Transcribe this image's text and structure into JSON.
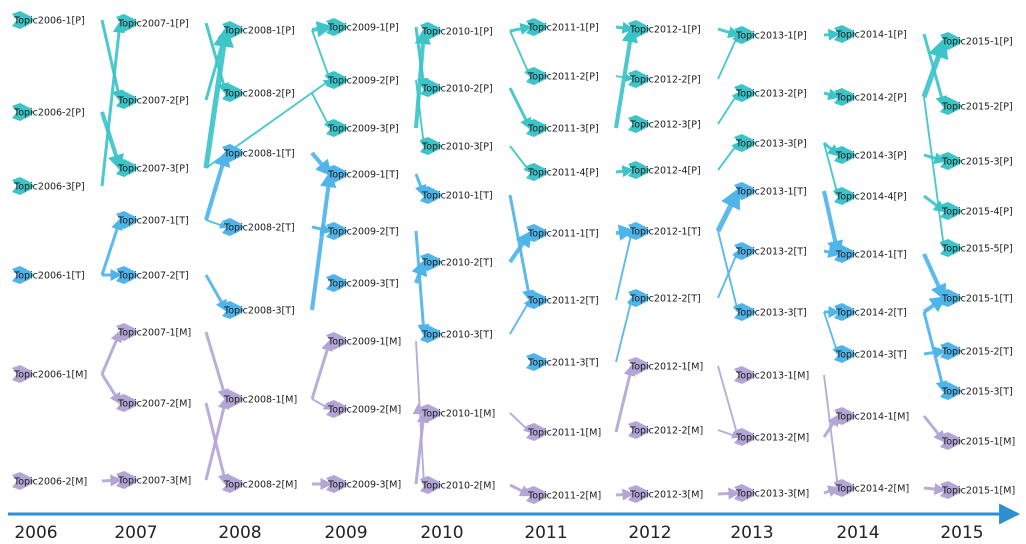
{
  "colors": {
    "P": "#3cc4c8",
    "T": "#4fb4ea",
    "M": "#b3a6d6",
    "axis": "#2b8fd0"
  },
  "years": [
    "2006",
    "2007",
    "2008",
    "2009",
    "2010",
    "2011",
    "2012",
    "2013",
    "2014",
    "2015"
  ],
  "nodes": [
    {
      "id": "P06_1",
      "label": "Topic2006-1[P]",
      "group": "P"
    },
    {
      "id": "P06_2",
      "label": "Topic2006-2[P]",
      "group": "P"
    },
    {
      "id": "P06_3",
      "label": "Topic2006-3[P]",
      "group": "P"
    },
    {
      "id": "P07_1",
      "label": "Topic2007-1[P]",
      "group": "P"
    },
    {
      "id": "P07_2",
      "label": "Topic2007-2[P]",
      "group": "P"
    },
    {
      "id": "P07_3",
      "label": "Topic2007-3[P]",
      "group": "P"
    },
    {
      "id": "P08_1",
      "label": "Topic2008-1[P]",
      "group": "P"
    },
    {
      "id": "P08_2",
      "label": "Topic2008-2[P]",
      "group": "P"
    },
    {
      "id": "P09_1",
      "label": "Topic2009-1[P]",
      "group": "P"
    },
    {
      "id": "P09_2",
      "label": "Topic2009-2[P]",
      "group": "P"
    },
    {
      "id": "P09_3",
      "label": "Topic2009-3[P]",
      "group": "P"
    },
    {
      "id": "P10_1",
      "label": "Topic2010-1[P]",
      "group": "P"
    },
    {
      "id": "P10_2",
      "label": "Topic2010-2[P]",
      "group": "P"
    },
    {
      "id": "P10_3",
      "label": "Topic2010-3[P]",
      "group": "P"
    },
    {
      "id": "P11_1",
      "label": "Topic2011-1[P]",
      "group": "P"
    },
    {
      "id": "P11_2",
      "label": "Topic2011-2[P]",
      "group": "P"
    },
    {
      "id": "P11_3",
      "label": "Topic2011-3[P]",
      "group": "P"
    },
    {
      "id": "P11_4",
      "label": "Topic2011-4[P]",
      "group": "P"
    },
    {
      "id": "P12_1",
      "label": "Topic2012-1[P]",
      "group": "P"
    },
    {
      "id": "P12_2",
      "label": "Topic2012-2[P]",
      "group": "P"
    },
    {
      "id": "P12_3",
      "label": "Topic2012-3[P]",
      "group": "P"
    },
    {
      "id": "P12_4",
      "label": "Topic2012-4[P]",
      "group": "P"
    },
    {
      "id": "P13_1",
      "label": "Topic2013-1[P]",
      "group": "P"
    },
    {
      "id": "P13_2",
      "label": "Topic2013-2[P]",
      "group": "P"
    },
    {
      "id": "P13_3",
      "label": "Topic2013-3[P]",
      "group": "P"
    },
    {
      "id": "P14_1",
      "label": "Topic2014-1[P]",
      "group": "P"
    },
    {
      "id": "P14_2",
      "label": "Topic2014-2[P]",
      "group": "P"
    },
    {
      "id": "P14_3",
      "label": "Topic2014-3[P]",
      "group": "P"
    },
    {
      "id": "P14_4",
      "label": "Topic2014-4[P]",
      "group": "P"
    },
    {
      "id": "P15_1",
      "label": "Topic2015-1[P]",
      "group": "P"
    },
    {
      "id": "P15_2",
      "label": "Topic2015-2[P]",
      "group": "P"
    },
    {
      "id": "P15_3",
      "label": "Topic2015-3[P]",
      "group": "P"
    },
    {
      "id": "P15_4",
      "label": "Topic2015-4[P]",
      "group": "P"
    },
    {
      "id": "P15_5",
      "label": "Topic2015-5[P]",
      "group": "P"
    },
    {
      "id": "T06_1",
      "label": "Topic2006-1[T]",
      "group": "T"
    },
    {
      "id": "T07_1",
      "label": "Topic2007-1[T]",
      "group": "T"
    },
    {
      "id": "T07_2",
      "label": "Topic2007-2[T]",
      "group": "T"
    },
    {
      "id": "T08_1",
      "label": "Topic2008-1[T]",
      "group": "T"
    },
    {
      "id": "T08_2",
      "label": "Topic2008-2[T]",
      "group": "T"
    },
    {
      "id": "T08_3",
      "label": "Topic2008-3[T]",
      "group": "T"
    },
    {
      "id": "T09_1",
      "label": "Topic2009-1[T]",
      "group": "T"
    },
    {
      "id": "T09_2",
      "label": "Topic2009-2[T]",
      "group": "T"
    },
    {
      "id": "T09_3",
      "label": "Topic2009-3[T]",
      "group": "T"
    },
    {
      "id": "T10_1",
      "label": "Topic2010-1[T]",
      "group": "T"
    },
    {
      "id": "T10_2",
      "label": "Topic2010-2[T]",
      "group": "T"
    },
    {
      "id": "T10_3",
      "label": "Topic2010-3[T]",
      "group": "T"
    },
    {
      "id": "T11_1",
      "label": "Topic2011-1[T]",
      "group": "T"
    },
    {
      "id": "T11_2",
      "label": "Topic2011-2[T]",
      "group": "T"
    },
    {
      "id": "T11_3",
      "label": "Topic2011-3[T]",
      "group": "T"
    },
    {
      "id": "T12_1",
      "label": "Topic2012-1[T]",
      "group": "T"
    },
    {
      "id": "T12_2",
      "label": "Topic2012-2[T]",
      "group": "T"
    },
    {
      "id": "T13_1",
      "label": "Topic2013-1[T]",
      "group": "T"
    },
    {
      "id": "T13_2",
      "label": "Topic2013-2[T]",
      "group": "T"
    },
    {
      "id": "T13_3",
      "label": "Topic2013-3[T]",
      "group": "T"
    },
    {
      "id": "T14_1",
      "label": "Topic2014-1[T]",
      "group": "T"
    },
    {
      "id": "T14_2",
      "label": "Topic2014-2[T]",
      "group": "T"
    },
    {
      "id": "T14_3",
      "label": "Topic2014-3[T]",
      "group": "T"
    },
    {
      "id": "T15_1",
      "label": "Topic2015-1[T]",
      "group": "T"
    },
    {
      "id": "T15_2",
      "label": "Topic2015-2[T]",
      "group": "T"
    },
    {
      "id": "T15_3",
      "label": "Topic2015-3[T]",
      "group": "T"
    },
    {
      "id": "M06_1",
      "label": "Topic2006-1[M]",
      "group": "M"
    },
    {
      "id": "M06_2",
      "label": "Topic2006-2[M]",
      "group": "M"
    },
    {
      "id": "M07_1",
      "label": "Topic2007-1[M]",
      "group": "M"
    },
    {
      "id": "M07_2",
      "label": "Topic2007-2[M]",
      "group": "M"
    },
    {
      "id": "M07_3",
      "label": "Topic2007-3[M]",
      "group": "M"
    },
    {
      "id": "M08_1",
      "label": "Topic2008-1[M]",
      "group": "M"
    },
    {
      "id": "M08_2",
      "label": "Topic2008-2[M]",
      "group": "M"
    },
    {
      "id": "M09_1",
      "label": "Topic2009-1[M]",
      "group": "M"
    },
    {
      "id": "M09_2",
      "label": "Topic2009-2[M]",
      "group": "M"
    },
    {
      "id": "M09_3",
      "label": "Topic2009-3[M]",
      "group": "M"
    },
    {
      "id": "M10_1",
      "label": "Topic2010-1[M]",
      "group": "M"
    },
    {
      "id": "M10_2",
      "label": "Topic2010-2[M]",
      "group": "M"
    },
    {
      "id": "M11_1",
      "label": "Topic2011-1[M]",
      "group": "M"
    },
    {
      "id": "M11_2",
      "label": "Topic2011-2[M]",
      "group": "M"
    },
    {
      "id": "M12_1",
      "label": "Topic2012-1[M]",
      "group": "M"
    },
    {
      "id": "M12_2",
      "label": "Topic2012-2[M]",
      "group": "M"
    },
    {
      "id": "M12_3",
      "label": "Topic2012-3[M]",
      "group": "M"
    },
    {
      "id": "M13_1",
      "label": "Topic2013-1[M]",
      "group": "M"
    },
    {
      "id": "M13_2",
      "label": "Topic2013-2[M]",
      "group": "M"
    },
    {
      "id": "M13_3",
      "label": "Topic2013-3[M]",
      "group": "M"
    },
    {
      "id": "M14_1",
      "label": "Topic2014-1[M]",
      "group": "M"
    },
    {
      "id": "M14_2",
      "label": "Topic2014-2[M]",
      "group": "M"
    },
    {
      "id": "M15_1a",
      "label": "Topic2015-1[M]",
      "group": "M"
    },
    {
      "id": "M15_1b",
      "label": "Topic2015-1[M]",
      "group": "M"
    }
  ],
  "edges": [
    [
      "P06_1",
      "P07_2",
      2
    ],
    [
      "P06_2",
      "P07_3",
      3
    ],
    [
      "P06_3",
      "P07_1",
      2
    ],
    [
      "P07_1",
      "P08_2",
      2
    ],
    [
      "P07_2",
      "P08_1",
      2
    ],
    [
      "P07_3",
      "P08_1",
      4
    ],
    [
      "P07_3",
      "P09_2",
      1
    ],
    [
      "P08_1",
      "P09_1",
      3
    ],
    [
      "P08_1",
      "P09_2",
      1
    ],
    [
      "P08_2",
      "P09_3",
      1
    ],
    [
      "P09_1",
      "P10_2",
      2
    ],
    [
      "P09_2",
      "P10_3",
      1
    ],
    [
      "P09_3",
      "P10_1",
      3
    ],
    [
      "P10_1",
      "P11_1",
      2
    ],
    [
      "P10_1",
      "P11_2",
      1
    ],
    [
      "P10_2",
      "P11_3",
      2
    ],
    [
      "P10_3",
      "P11_4",
      1
    ],
    [
      "P11_1",
      "P12_1",
      2
    ],
    [
      "P11_2",
      "P12_2",
      1
    ],
    [
      "P11_3",
      "P12_1",
      3
    ],
    [
      "P11_4",
      "P12_4",
      2
    ],
    [
      "P12_1",
      "P13_1",
      2
    ],
    [
      "P12_2",
      "P13_1",
      1
    ],
    [
      "P12_3",
      "P13_2",
      1
    ],
    [
      "P12_4",
      "P13_3",
      1
    ],
    [
      "P13_1",
      "P14_1",
      2
    ],
    [
      "P13_2",
      "P14_2",
      2
    ],
    [
      "P13_3",
      "P14_3",
      2
    ],
    [
      "P13_3",
      "P14_4",
      1
    ],
    [
      "P14_1",
      "P15_2",
      2
    ],
    [
      "P14_2",
      "P15_1",
      4
    ],
    [
      "P14_2",
      "P15_5",
      1
    ],
    [
      "P14_3",
      "P15_3",
      2
    ],
    [
      "P14_4",
      "P15_4",
      2
    ],
    [
      "T06_1",
      "T07_1",
      2
    ],
    [
      "T06_1",
      "T07_2",
      2
    ],
    [
      "T07_1",
      "T08_1",
      3
    ],
    [
      "T07_1",
      "T08_2",
      1
    ],
    [
      "T07_2",
      "T08_3",
      2
    ],
    [
      "T08_1",
      "T09_1",
      3
    ],
    [
      "T08_2",
      "T09_2",
      2
    ],
    [
      "T08_3",
      "T09_1",
      3
    ],
    [
      "T09_1",
      "T10_1",
      2
    ],
    [
      "T09_2",
      "T10_3",
      2
    ],
    [
      "T09_3",
      "T10_2",
      3
    ],
    [
      "T10_1",
      "T11_2",
      2
    ],
    [
      "T10_2",
      "T11_1",
      3
    ],
    [
      "T10_3",
      "T11_2",
      1
    ],
    [
      "T11_1",
      "T12_1",
      3
    ],
    [
      "T11_2",
      "T12_1",
      1
    ],
    [
      "T11_3",
      "T12_2",
      1
    ],
    [
      "T12_1",
      "T13_1",
      4
    ],
    [
      "T12_1",
      "T13_3",
      1
    ],
    [
      "T12_2",
      "T13_2",
      1
    ],
    [
      "T13_1",
      "T14_1",
      3
    ],
    [
      "T13_2",
      "T14_1",
      2
    ],
    [
      "T13_3",
      "T14_2",
      2
    ],
    [
      "T13_3",
      "T14_3",
      1
    ],
    [
      "T14_1",
      "T15_1",
      3
    ],
    [
      "T14_2",
      "T15_1",
      3
    ],
    [
      "T14_2",
      "T15_3",
      2
    ],
    [
      "T14_3",
      "T15_2",
      2
    ],
    [
      "M06_1",
      "M07_1",
      2
    ],
    [
      "M06_1",
      "M07_2",
      2
    ],
    [
      "M06_2",
      "M07_3",
      2
    ],
    [
      "M07_1",
      "M08_1",
      2
    ],
    [
      "M07_2",
      "M08_2",
      2
    ],
    [
      "M07_3",
      "M08_1",
      2
    ],
    [
      "M08_1",
      "M09_1",
      2
    ],
    [
      "M08_1",
      "M09_2",
      1
    ],
    [
      "M08_2",
      "M09_3",
      2
    ],
    [
      "M09_1",
      "M10_2",
      1
    ],
    [
      "M09_2",
      "M10_1",
      2
    ],
    [
      "M09_3",
      "M10_1",
      2
    ],
    [
      "M10_1",
      "M11_1",
      1
    ],
    [
      "M10_2",
      "M11_2",
      2
    ],
    [
      "M11_1",
      "M12_1",
      2
    ],
    [
      "M11_2",
      "M12_3",
      2
    ],
    [
      "M12_1",
      "M13_2",
      1
    ],
    [
      "M12_2",
      "M13_2",
      1
    ],
    [
      "M12_3",
      "M13_3",
      2
    ],
    [
      "M13_1",
      "M14_2",
      1
    ],
    [
      "M13_2",
      "M14_1",
      2
    ],
    [
      "M13_3",
      "M14_2",
      2
    ],
    [
      "M14_1",
      "M15_1a",
      2
    ],
    [
      "M14_2",
      "M15_1b",
      2
    ]
  ]
}
